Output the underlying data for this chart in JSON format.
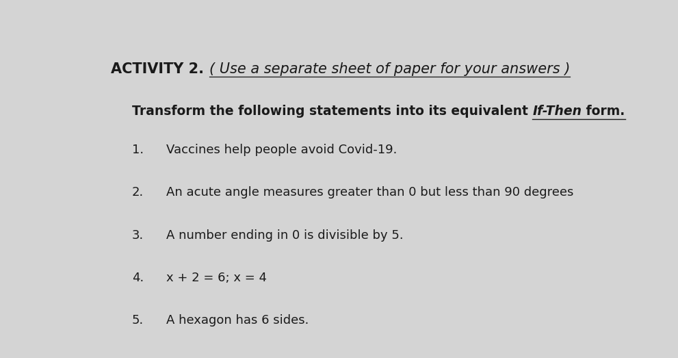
{
  "background_color": "#d4d4d4",
  "title_bold": "ACTIVITY 2. ",
  "title_italic": "( Use a separate sheet of paper for your answers )",
  "subtitle_normal": "Transform the following statements into its equivalent ",
  "subtitle_italic_bold": "If-Then",
  "subtitle_end": " form.",
  "items": [
    "Vaccines help people avoid Covid-19.",
    "An acute angle measures greater than 0 but less than 90 degrees",
    "A number ending in 0 is divisible by 5.",
    "x + 2 = 6; x = 4",
    "A hexagon has 6 sides."
  ],
  "font_color": "#1a1a1a",
  "title_fontsize": 15,
  "subtitle_fontsize": 13.5,
  "item_fontsize": 13
}
